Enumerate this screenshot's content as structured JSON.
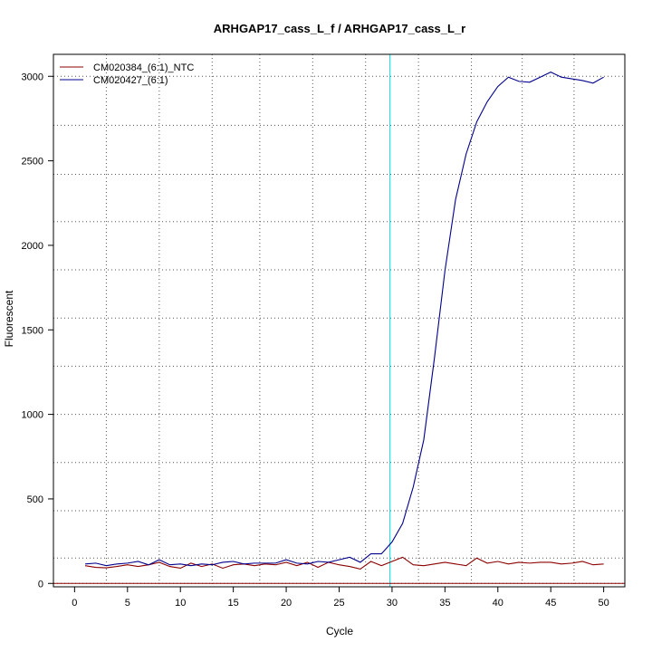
{
  "chart_data": {
    "type": "line",
    "title": "ARHGAP17_cass_L_f / ARHGAP17_cass_L_r",
    "xlabel": "Cycle",
    "ylabel": "Fluorescent",
    "xlim": [
      -2,
      52
    ],
    "ylim": [
      -20,
      3130
    ],
    "xticks": [
      0,
      5,
      10,
      15,
      20,
      25,
      30,
      35,
      40,
      45,
      50
    ],
    "yticks": [
      0,
      500,
      1000,
      1500,
      2000,
      2500,
      3000
    ],
    "x_gridlines": [
      3,
      8,
      13,
      17.5,
      22.5,
      27.5,
      32.5,
      37.5,
      42.3,
      47.2
    ],
    "y_gridlines": [
      0,
      150,
      430,
      715,
      1000,
      1285,
      1570,
      1855,
      2140,
      2420,
      2710,
      3000
    ],
    "threshold_line_x": 29.8,
    "threshold_color": "#00e5ee",
    "baseline_y": 0,
    "baseline_color": "#8b0000",
    "legend_position": "top-left",
    "grid": true,
    "series": [
      {
        "name": "CM020384_(6:1)_NTC",
        "color": "#8b0000",
        "x": [
          1,
          2,
          3,
          4,
          5,
          6,
          7,
          8,
          9,
          10,
          11,
          12,
          13,
          14,
          15,
          16,
          17,
          18,
          19,
          20,
          21,
          22,
          23,
          24,
          25,
          26,
          27,
          28,
          29,
          30,
          31,
          32,
          33,
          34,
          35,
          36,
          37,
          38,
          39,
          40,
          41,
          42,
          43,
          44,
          45,
          46,
          47,
          48,
          49,
          50
        ],
        "values": [
          105,
          95,
          92,
          100,
          110,
          100,
          110,
          125,
          100,
          90,
          120,
          100,
          115,
          90,
          110,
          115,
          105,
          115,
          110,
          125,
          105,
          125,
          95,
          125,
          110,
          100,
          85,
          130,
          105,
          130,
          155,
          110,
          105,
          115,
          125,
          115,
          105,
          150,
          120,
          130,
          115,
          125,
          120,
          125,
          125,
          115,
          120,
          130,
          110,
          115
        ]
      },
      {
        "name": "CM020427_(6:1)",
        "color": "#00008b",
        "x": [
          1,
          2,
          3,
          4,
          5,
          6,
          7,
          8,
          9,
          10,
          11,
          12,
          13,
          14,
          15,
          16,
          17,
          18,
          19,
          20,
          21,
          22,
          23,
          24,
          25,
          26,
          27,
          28,
          29,
          30,
          31,
          32,
          33,
          34,
          35,
          36,
          37,
          38,
          39,
          40,
          41,
          42,
          43,
          44,
          45,
          46,
          47,
          48,
          49,
          50
        ],
        "values": [
          115,
          120,
          105,
          115,
          120,
          130,
          110,
          140,
          110,
          115,
          105,
          115,
          110,
          125,
          130,
          115,
          120,
          120,
          120,
          140,
          120,
          115,
          130,
          125,
          140,
          155,
          125,
          175,
          175,
          245,
          355,
          570,
          850,
          1330,
          1850,
          2270,
          2540,
          2730,
          2850,
          2940,
          2995,
          2970,
          2965,
          2995,
          3025,
          2995,
          2985,
          2975,
          2960,
          2995
        ]
      }
    ]
  }
}
